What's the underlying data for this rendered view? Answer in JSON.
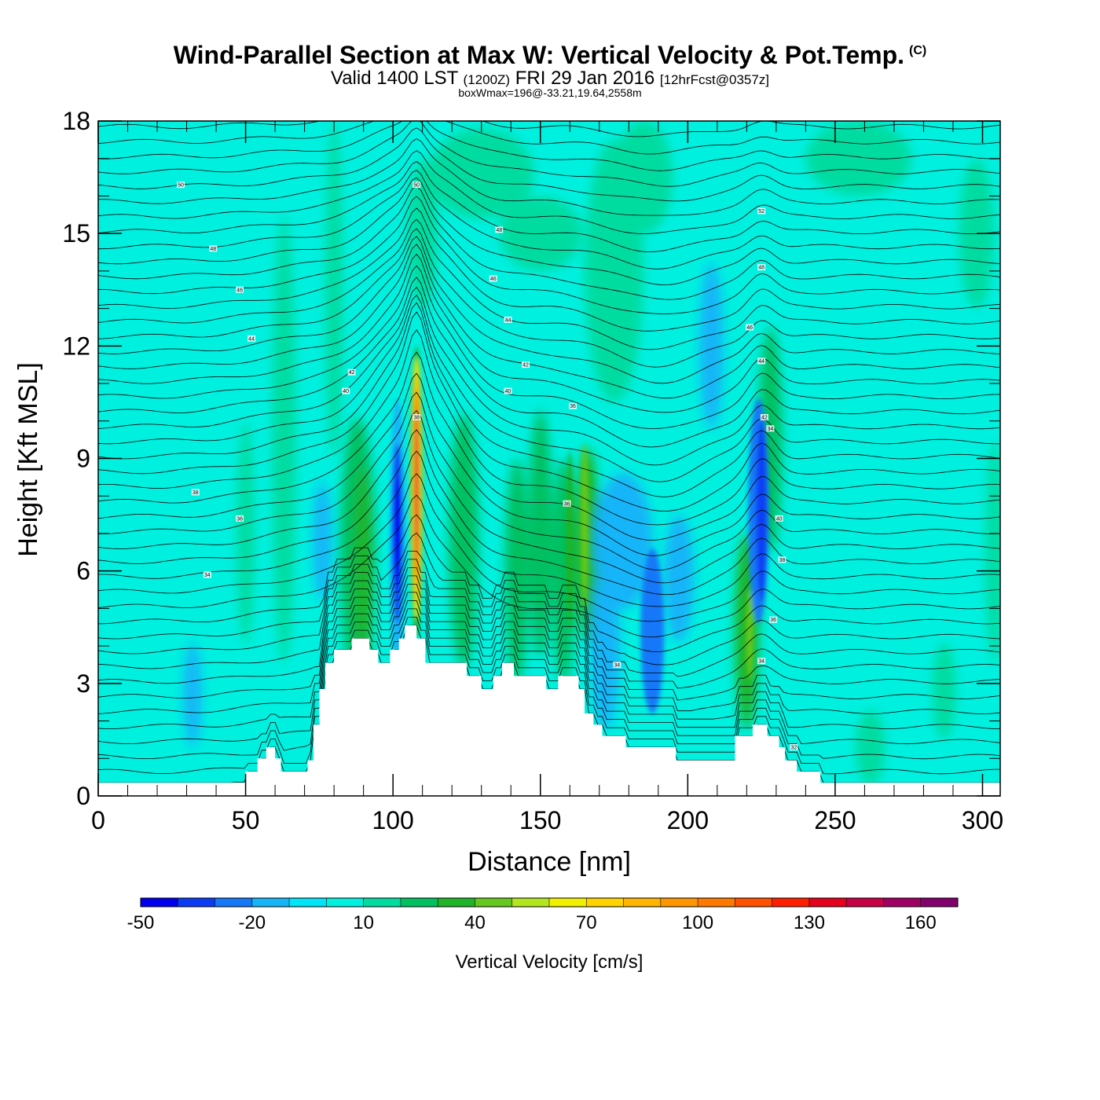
{
  "header": {
    "title": "Wind-Parallel Section at Max W: Vertical Velocity & Pot.Temp.",
    "copyright": "(C)",
    "valid_prefix": "Valid 1400 LST",
    "valid_utc": "(1200Z)",
    "valid_date": "FRI 29 Jan 2016",
    "forecast": "[12hrFcst@0357z]",
    "box_info": "boxWmax=196@-33.21,19.64,2558m"
  },
  "chart_data": {
    "type": "heatmap",
    "xlabel": "Distance [nm]",
    "ylabel": "Height [Kft MSL]",
    "xlim": [
      0,
      306
    ],
    "ylim": [
      0,
      18
    ],
    "x_ticks": [
      0,
      50,
      100,
      150,
      200,
      250,
      300
    ],
    "y_ticks": [
      0,
      3,
      6,
      9,
      12,
      15,
      18
    ],
    "colorbar": {
      "label": "Vertical Velocity [cm/s]",
      "tick_values": [
        -50,
        -20,
        10,
        40,
        70,
        100,
        130,
        160
      ],
      "levels": [
        -50,
        -40,
        -30,
        -20,
        -10,
        0,
        10,
        20,
        30,
        40,
        50,
        60,
        70,
        80,
        90,
        100,
        110,
        120,
        130,
        140,
        150,
        160,
        170
      ],
      "colors": [
        "#0000ee",
        "#0a3cf5",
        "#1478f8",
        "#14b4f8",
        "#00e4f8",
        "#00f0e0",
        "#00dca0",
        "#00c060",
        "#1eb428",
        "#64c81e",
        "#b4e61e",
        "#f0f000",
        "#ffd200",
        "#ffb400",
        "#ff9600",
        "#ff7800",
        "#ff5000",
        "#ff1e00",
        "#e6001e",
        "#c80046",
        "#a00064",
        "#82006e"
      ]
    },
    "terrain": [
      [
        50,
        0.35
      ],
      [
        50,
        0.65
      ],
      [
        54,
        0.65
      ],
      [
        54,
        1.0
      ],
      [
        57,
        1.0
      ],
      [
        57,
        1.3
      ],
      [
        60,
        1.3
      ],
      [
        60,
        1.0
      ],
      [
        62,
        1.0
      ],
      [
        62,
        0.65
      ],
      [
        65,
        0.65
      ],
      [
        65,
        0.65
      ],
      [
        71,
        0.65
      ],
      [
        71,
        0.95
      ],
      [
        73,
        0.95
      ],
      [
        73,
        1.9
      ],
      [
        75,
        1.9
      ],
      [
        75,
        2.85
      ],
      [
        77,
        2.85
      ],
      [
        77,
        3.55
      ],
      [
        80,
        3.55
      ],
      [
        80,
        3.9
      ],
      [
        86,
        3.9
      ],
      [
        86,
        4.2
      ],
      [
        92,
        4.2
      ],
      [
        92,
        3.9
      ],
      [
        95,
        3.9
      ],
      [
        95,
        3.55
      ],
      [
        99,
        3.55
      ],
      [
        99,
        3.9
      ],
      [
        102,
        3.9
      ],
      [
        102,
        4.2
      ],
      [
        104,
        4.2
      ],
      [
        104,
        4.55
      ],
      [
        108,
        4.55
      ],
      [
        108,
        4.2
      ],
      [
        111,
        4.2
      ],
      [
        111,
        3.55
      ],
      [
        125,
        3.55
      ],
      [
        125,
        3.2
      ],
      [
        130,
        3.2
      ],
      [
        130,
        2.85
      ],
      [
        134,
        2.85
      ],
      [
        134,
        3.2
      ],
      [
        137,
        3.2
      ],
      [
        137,
        3.55
      ],
      [
        141,
        3.55
      ],
      [
        141,
        3.2
      ],
      [
        152,
        3.2
      ],
      [
        152,
        2.85
      ],
      [
        156,
        2.85
      ],
      [
        156,
        3.2
      ],
      [
        163,
        3.2
      ],
      [
        163,
        2.85
      ],
      [
        165,
        2.85
      ],
      [
        165,
        2.2
      ],
      [
        168,
        2.2
      ],
      [
        168,
        1.9
      ],
      [
        171,
        1.9
      ],
      [
        171,
        1.6
      ],
      [
        178,
        1.6
      ],
      [
        178,
        1.6
      ],
      [
        179,
        1.6
      ],
      [
        179,
        1.3
      ],
      [
        196,
        1.3
      ],
      [
        196,
        0.95
      ],
      [
        216,
        0.95
      ],
      [
        216,
        1.6
      ],
      [
        222,
        1.6
      ],
      [
        222,
        1.9
      ],
      [
        227,
        1.9
      ],
      [
        227,
        1.6
      ],
      [
        231,
        1.6
      ],
      [
        231,
        1.3
      ],
      [
        233,
        1.3
      ],
      [
        233,
        0.95
      ],
      [
        237,
        0.95
      ],
      [
        237,
        0.65
      ],
      [
        245,
        0.65
      ],
      [
        245,
        0.35
      ],
      [
        250,
        0.35
      ]
    ],
    "ground_level": 0.35,
    "features": [
      {
        "name": "main-updraft",
        "x": 108,
        "y": 8.3,
        "value": 196
      },
      {
        "name": "downdraft-west",
        "x": 101.5,
        "y": 7.1,
        "value": -45
      },
      {
        "name": "downdraft-lee",
        "x": 188,
        "y": 4.4,
        "value": -30
      },
      {
        "name": "downdraft-ridge",
        "x": 224,
        "y": 7.6,
        "value": -40
      }
    ],
    "contour_labels": [
      "50",
      "48",
      "46",
      "44",
      "42",
      "40",
      "38",
      "36",
      "34",
      "34",
      "50",
      "48",
      "46",
      "44",
      "42",
      "40",
      "38",
      "36",
      "36",
      "34",
      "52",
      "48",
      "46",
      "44",
      "42",
      "40",
      "38",
      "36",
      "34",
      "32"
    ]
  }
}
